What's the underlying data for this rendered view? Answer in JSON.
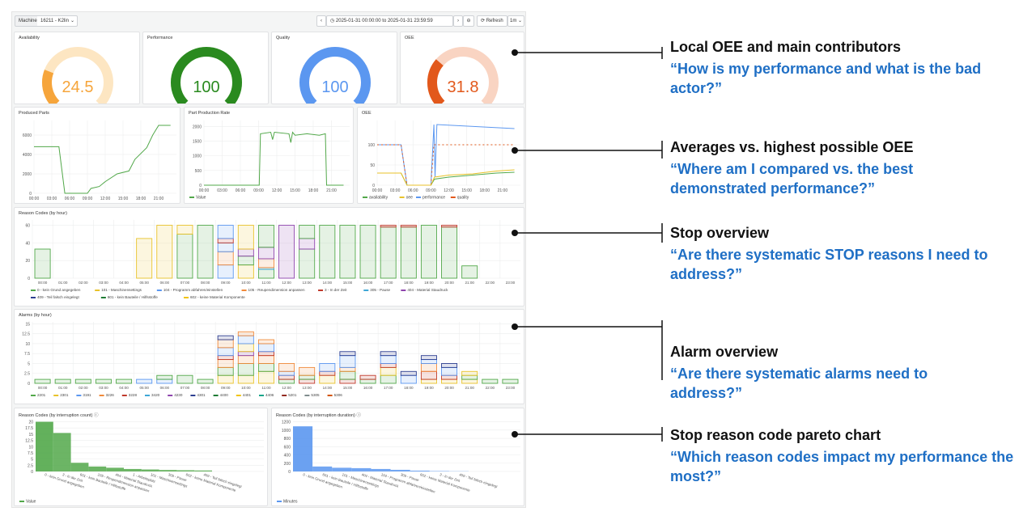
{
  "toolbar": {
    "machine_label": "Machine",
    "machine_value": "16211 - K2lin",
    "time_range": "2025-01-31 00:00:00 to 2025-01-31 23:59:59",
    "refresh_label": "Refresh",
    "interval": "1m"
  },
  "gauges": [
    {
      "title": "Availability",
      "value": "24.5",
      "fraction": 0.245,
      "color": "#f6a53b",
      "track": "#fde6c2"
    },
    {
      "title": "Performance",
      "value": "100",
      "fraction": 1.0,
      "color": "#2a8a1f",
      "track": "#cfe8c7"
    },
    {
      "title": "Quality",
      "value": "100",
      "fraction": 1.0,
      "color": "#5b97f0",
      "track": "#d6e5fb"
    },
    {
      "title": "OEE",
      "value": "31.8",
      "fraction": 0.318,
      "color": "#e2581b",
      "track": "#f9d4c2"
    }
  ],
  "x_ticks_short": [
    "00:00",
    "03:00",
    "06:00",
    "09:00",
    "12:00",
    "15:00",
    "18:00",
    "21:00"
  ],
  "x_ticks_hourly": [
    "00:00",
    "01:00",
    "02:00",
    "03:00",
    "04:00",
    "05:00",
    "06:00",
    "07:00",
    "08:00",
    "09:00",
    "10:00",
    "11:00",
    "12:00",
    "13:00",
    "14:00",
    "15:00",
    "16:00",
    "17:00",
    "18:00",
    "19:00",
    "20:00",
    "21:00",
    "22:00",
    "23:00"
  ],
  "chart_data": [
    {
      "type": "line",
      "title": "Produced Parts",
      "x_ticks": [
        "00:00",
        "03:00",
        "06:00",
        "09:00",
        "12:00",
        "15:00",
        "18:00",
        "21:00"
      ],
      "y_ticks": [
        "0",
        "2000",
        "4000",
        "6000"
      ],
      "ylim": [
        0,
        7500
      ],
      "xlim": [
        0,
        24
      ],
      "series": [
        {
          "color": "#52a84a",
          "points": [
            [
              0,
              4800
            ],
            [
              4.2,
              4800
            ],
            [
              5.2,
              0
            ],
            [
              9,
              0
            ],
            [
              9.6,
              500
            ],
            [
              11,
              700
            ],
            [
              12,
              1200
            ],
            [
              14,
              2000
            ],
            [
              16,
              2300
            ],
            [
              17,
              3500
            ],
            [
              19,
              4700
            ],
            [
              20,
              6000
            ],
            [
              21,
              7000
            ],
            [
              23,
              7000
            ]
          ]
        }
      ]
    },
    {
      "type": "line",
      "title": "Part Production Rate",
      "x_ticks": [
        "00:00",
        "03:00",
        "06:00",
        "09:00",
        "12:00",
        "15:00",
        "18:00",
        "21:00"
      ],
      "y_ticks": [
        "0",
        "500",
        "1000",
        "1500",
        "2000"
      ],
      "ylim": [
        0,
        2200
      ],
      "xlim": [
        0,
        24
      ],
      "legend": [
        {
          "name": "Value",
          "color": "#52a84a"
        }
      ],
      "series": [
        {
          "color": "#52a84a",
          "points": [
            [
              0,
              0
            ],
            [
              9.1,
              0
            ],
            [
              9.3,
              1750
            ],
            [
              11,
              1800
            ],
            [
              11.3,
              1550
            ],
            [
              11.6,
              1800
            ],
            [
              14,
              1750
            ],
            [
              14.3,
              1450
            ],
            [
              14.6,
              1800
            ],
            [
              15,
              1700
            ],
            [
              17,
              1750
            ],
            [
              19,
              1700
            ],
            [
              20,
              1750
            ],
            [
              20.2,
              0
            ],
            [
              23,
              0
            ]
          ]
        }
      ]
    },
    {
      "type": "line",
      "title": "OEE",
      "x_ticks": [
        "00:00",
        "03:00",
        "06:00",
        "09:00",
        "12:00",
        "15:00",
        "18:00",
        "21:00"
      ],
      "y_ticks": [
        "0",
        "50",
        "100"
      ],
      "ylim": [
        0,
        160
      ],
      "xlim": [
        0,
        24
      ],
      "legend": [
        {
          "name": "availability",
          "color": "#52a84a"
        },
        {
          "name": "oee",
          "color": "#e8c22a"
        },
        {
          "name": "performance",
          "color": "#5b97f0"
        },
        {
          "name": "quality",
          "color": "#e2581b"
        }
      ],
      "series": [
        {
          "name": "performance",
          "color": "#5b97f0",
          "points": [
            [
              0,
              100
            ],
            [
              4,
              100
            ],
            [
              5,
              0
            ],
            [
              9,
              0
            ],
            [
              9.5,
              150
            ],
            [
              9.7,
              20
            ],
            [
              10,
              150
            ],
            [
              23,
              140
            ]
          ]
        },
        {
          "name": "quality",
          "color": "#e2581b",
          "dashed": true,
          "points": [
            [
              0,
              100
            ],
            [
              4,
              100
            ],
            [
              5,
              0
            ],
            [
              9,
              0
            ],
            [
              9.5,
              100
            ],
            [
              23,
              100
            ]
          ]
        },
        {
          "name": "availability",
          "color": "#52a84a",
          "points": [
            [
              0,
              30
            ],
            [
              4,
              30
            ],
            [
              5,
              0
            ],
            [
              9,
              0
            ],
            [
              9.6,
              15
            ],
            [
              12,
              20
            ],
            [
              16,
              25
            ],
            [
              20,
              30
            ],
            [
              23,
              32
            ]
          ]
        },
        {
          "name": "oee",
          "color": "#e8c22a",
          "points": [
            [
              0,
              30
            ],
            [
              4,
              30
            ],
            [
              5,
              0
            ],
            [
              9,
              0
            ],
            [
              9.6,
              20
            ],
            [
              12,
              25
            ],
            [
              16,
              28
            ],
            [
              20,
              35
            ],
            [
              23,
              38
            ]
          ]
        }
      ]
    },
    {
      "type": "bar",
      "title": "Reason Codes (by hour)",
      "y_ticks": [
        "0",
        "20",
        "40",
        "60"
      ],
      "ylim": [
        0,
        66
      ],
      "legend": [
        {
          "name": "0 - kein Grund angegeben",
          "color": "#52a84a"
        },
        {
          "name": "101 - Maschinensettings",
          "color": "#e8c22a"
        },
        {
          "name": "104 - Programm abfahren/einstellen",
          "color": "#5b97f0"
        },
        {
          "name": "105 - Reupendimension anpassen",
          "color": "#f08a3a"
        },
        {
          "name": "3 - In der Zeit",
          "color": "#c0392b"
        },
        {
          "name": "305 - Pause",
          "color": "#3fa7d6"
        },
        {
          "name": "404 - Material Staudruck",
          "color": "#8e44ad"
        },
        {
          "name": "409 - Teil falsch eingelegt",
          "color": "#2c3e90"
        },
        {
          "name": "601 - kein Bauteile / Hilfsstoffe",
          "color": "#1e7b34"
        },
        {
          "name": "602 - keine Material Komponente",
          "color": "#f1c40f"
        }
      ],
      "stacks": [
        [
          [
            0,
            33
          ]
        ],
        [],
        [],
        [],
        [],
        [
          [
            1,
            45
          ]
        ],
        [
          [
            1,
            60
          ]
        ],
        [
          [
            0,
            50
          ],
          [
            1,
            10
          ]
        ],
        [
          [
            0,
            60
          ]
        ],
        [
          [
            2,
            15
          ],
          [
            3,
            15
          ],
          [
            2,
            10
          ],
          [
            4,
            5
          ],
          [
            2,
            15
          ]
        ],
        [
          [
            1,
            15
          ],
          [
            0,
            10
          ],
          [
            6,
            8
          ],
          [
            1,
            27
          ]
        ],
        [
          [
            0,
            10
          ],
          [
            5,
            2
          ],
          [
            3,
            10
          ],
          [
            6,
            13
          ],
          [
            0,
            25
          ]
        ],
        [
          [
            6,
            60
          ]
        ],
        [
          [
            0,
            33
          ],
          [
            6,
            12
          ],
          [
            0,
            15
          ]
        ],
        [
          [
            0,
            60
          ]
        ],
        [
          [
            0,
            60
          ]
        ],
        [
          [
            0,
            60
          ]
        ],
        [
          [
            0,
            58
          ],
          [
            4,
            2
          ]
        ],
        [
          [
            0,
            58
          ],
          [
            4,
            2
          ]
        ],
        [
          [
            0,
            60
          ]
        ],
        [
          [
            0,
            58
          ],
          [
            4,
            2
          ]
        ],
        [
          [
            0,
            14
          ]
        ],
        [],
        []
      ]
    },
    {
      "type": "bar",
      "title": "Alarms (by hour)",
      "y_ticks": [
        "0",
        "2.5",
        "5",
        "7.5",
        "10",
        "12.5",
        "15"
      ],
      "ylim": [
        0,
        15.5
      ],
      "legend": [
        {
          "name": "2201",
          "color": "#52a84a"
        },
        {
          "name": "2301",
          "color": "#e8c22a"
        },
        {
          "name": "3191",
          "color": "#5b97f0"
        },
        {
          "name": "3226",
          "color": "#f08a3a"
        },
        {
          "name": "3228",
          "color": "#c0392b"
        },
        {
          "name": "3420",
          "color": "#3fa7d6"
        },
        {
          "name": "4230",
          "color": "#8e44ad"
        },
        {
          "name": "4301",
          "color": "#2c3e90"
        },
        {
          "name": "4400",
          "color": "#1e7b34"
        },
        {
          "name": "4401",
          "color": "#f1c40f"
        },
        {
          "name": "4406",
          "color": "#17a589"
        },
        {
          "name": "5201",
          "color": "#922b21"
        },
        {
          "name": "5305",
          "color": "#7f8c8d"
        },
        {
          "name": "5306",
          "color": "#d35400"
        }
      ],
      "stacks": [
        [
          [
            0,
            1
          ]
        ],
        [
          [
            0,
            1
          ]
        ],
        [
          [
            0,
            1
          ]
        ],
        [
          [
            0,
            1
          ]
        ],
        [
          [
            0,
            1
          ]
        ],
        [
          [
            2,
            1
          ]
        ],
        [
          [
            2,
            1
          ],
          [
            0,
            1
          ]
        ],
        [
          [
            0,
            2
          ]
        ],
        [
          [
            0,
            1
          ]
        ],
        [
          [
            1,
            2
          ],
          [
            0,
            2
          ],
          [
            3,
            2
          ],
          [
            4,
            1
          ],
          [
            2,
            2
          ],
          [
            3,
            2
          ],
          [
            7,
            1
          ]
        ],
        [
          [
            1,
            2
          ],
          [
            0,
            3
          ],
          [
            3,
            2
          ],
          [
            6,
            1
          ],
          [
            1,
            2
          ],
          [
            2,
            2
          ],
          [
            3,
            1
          ]
        ],
        [
          [
            1,
            3
          ],
          [
            0,
            2
          ],
          [
            3,
            2
          ],
          [
            4,
            1
          ],
          [
            2,
            2
          ],
          [
            3,
            1
          ]
        ],
        [
          [
            0,
            1
          ],
          [
            4,
            1
          ],
          [
            2,
            1
          ],
          [
            3,
            2
          ]
        ],
        [
          [
            4,
            1
          ],
          [
            0,
            1
          ],
          [
            3,
            2
          ]
        ],
        [
          [
            1,
            2
          ],
          [
            4,
            1
          ],
          [
            2,
            2
          ]
        ],
        [
          [
            4,
            1
          ],
          [
            0,
            2
          ],
          [
            3,
            1
          ],
          [
            2,
            3
          ],
          [
            7,
            1
          ]
        ],
        [
          [
            0,
            1
          ],
          [
            4,
            1
          ]
        ],
        [
          [
            0,
            2
          ],
          [
            1,
            2
          ],
          [
            4,
            1
          ],
          [
            2,
            2
          ],
          [
            7,
            1
          ]
        ],
        [
          [
            2,
            2
          ],
          [
            7,
            1
          ]
        ],
        [
          [
            1,
            1
          ],
          [
            4,
            2
          ],
          [
            3,
            2
          ],
          [
            2,
            1
          ],
          [
            7,
            1
          ]
        ],
        [
          [
            1,
            1
          ],
          [
            4,
            1
          ],
          [
            2,
            2
          ],
          [
            7,
            1
          ]
        ],
        [
          [
            1,
            1
          ],
          [
            0,
            1
          ],
          [
            1,
            1
          ]
        ],
        [
          [
            0,
            1
          ]
        ],
        [
          [
            0,
            1
          ]
        ]
      ]
    },
    {
      "type": "bar",
      "title": "Reason Codes (by interruption count)",
      "color": "#52a84a",
      "y_ticks": [
        "0",
        "2.5",
        "5",
        "7.5",
        "10",
        "12.5",
        "15",
        "17.5",
        "20"
      ],
      "ylim": [
        0,
        20.5
      ],
      "categories": [
        "0 - kein Grund angegeben",
        "3 - In der Zeit",
        "601 - kein Bauteile / Hilfsstoffe",
        "105 - Reupendimension anpassen",
        "404 - Material Staudruck",
        "1 - Arbeitsplatz",
        "101 - Maschinensettings",
        "305 - Pause",
        "602 - keine Material Komponente",
        "409 - Teil falsch eingelegt"
      ],
      "values": [
        20,
        15.5,
        3.5,
        2,
        1.5,
        1,
        0.8,
        0.6,
        0.5,
        0.4
      ],
      "legend": [
        {
          "name": "Value",
          "color": "#52a84a"
        }
      ]
    },
    {
      "type": "bar",
      "title": "Reason Codes (by interruption duration)",
      "color": "#5b97f0",
      "y_ticks": [
        "0",
        "200",
        "400",
        "600",
        "800",
        "1000",
        "1200"
      ],
      "ylim": [
        0,
        1230
      ],
      "categories": [
        "0 - kein Grund angegeben",
        "601 - kein Bauteile / Hilfsstoffe",
        "101 - Maschinensettings",
        "404 - Material Staudruck",
        "104 - Programm abfahren/einstellen",
        "305 - Pause",
        "602 - keine Material Komponente",
        "3 - In der Zeit",
        "409 - Teil falsch eingelegt"
      ],
      "values": [
        1090,
        120,
        90,
        80,
        60,
        40,
        20,
        10,
        5
      ],
      "legend": [
        {
          "name": "Minutes",
          "color": "#5b97f0"
        }
      ]
    }
  ],
  "annotations": [
    {
      "heading": "Local OEE and main contributors",
      "question": "“How is my performance and what is the bad actor?”"
    },
    {
      "heading": "Averages vs. highest possible OEE",
      "question": "“Where am I compared vs. the best demonstrated performance?”"
    },
    {
      "heading": "Stop overview",
      "question": "“Are there systematic STOP reasons I need to address?”"
    },
    {
      "heading": "Alarm overview",
      "question": "“Are there systematic alarms need to address?”"
    },
    {
      "heading": "Stop reason code pareto chart",
      "question": "“Which reason codes impact my performance the most?”"
    }
  ]
}
